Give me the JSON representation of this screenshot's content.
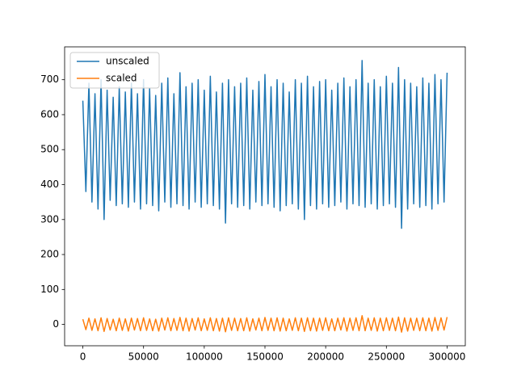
{
  "chart_data": {
    "type": "line",
    "x": [
      0,
      2500,
      5000,
      7500,
      10000,
      12500,
      15000,
      17500,
      20000,
      22500,
      25000,
      27500,
      30000,
      32500,
      35000,
      37500,
      40000,
      42500,
      45000,
      47500,
      50000,
      52500,
      55000,
      57500,
      60000,
      62500,
      65000,
      67500,
      70000,
      72500,
      75000,
      77500,
      80000,
      82500,
      85000,
      87500,
      90000,
      92500,
      95000,
      97500,
      100000,
      102500,
      105000,
      107500,
      110000,
      112500,
      115000,
      117500,
      120000,
      122500,
      125000,
      127500,
      130000,
      132500,
      135000,
      137500,
      140000,
      142500,
      145000,
      147500,
      150000,
      152500,
      155000,
      157500,
      160000,
      162500,
      165000,
      167500,
      170000,
      172500,
      175000,
      177500,
      180000,
      182500,
      185000,
      187500,
      190000,
      192500,
      195000,
      197500,
      200000,
      202500,
      205000,
      207500,
      210000,
      212500,
      215000,
      217500,
      220000,
      222500,
      225000,
      227500,
      230000,
      232500,
      235000,
      237500,
      240000,
      242500,
      245000,
      247500,
      250000,
      252500,
      255000,
      257500,
      260000,
      262500,
      265000,
      267500,
      270000,
      272500,
      275000,
      277500,
      280000,
      282500,
      285000,
      287500,
      290000,
      292500,
      295000,
      297500,
      300000
    ],
    "series": [
      {
        "name": "unscaled",
        "color": "#1f77b4",
        "values": [
          640,
          380,
          690,
          350,
          660,
          330,
          700,
          300,
          670,
          355,
          650,
          340,
          680,
          345,
          665,
          335,
          690,
          350,
          660,
          330,
          700,
          345,
          675,
          340,
          655,
          325,
          690,
          350,
          705,
          335,
          660,
          345,
          720,
          340,
          680,
          330,
          690,
          350,
          700,
          335,
          670,
          345,
          710,
          340,
          665,
          330,
          690,
          290,
          700,
          345,
          680,
          335,
          690,
          340,
          705,
          330,
          670,
          350,
          695,
          340,
          715,
          345,
          680,
          335,
          700,
          325,
          690,
          340,
          665,
          345,
          700,
          330,
          690,
          300,
          710,
          340,
          680,
          330,
          695,
          345,
          700,
          335,
          670,
          340,
          690,
          350,
          705,
          330,
          680,
          345,
          700,
          340,
          755,
          335,
          690,
          345,
          700,
          330,
          680,
          340,
          710,
          345,
          690,
          335,
          735,
          275,
          700,
          330,
          690,
          345,
          680,
          335,
          705,
          340,
          690,
          330,
          715,
          345,
          700,
          350,
          720
        ]
      },
      {
        "name": "scaled",
        "color": "#ff7f0e",
        "values": [
          15,
          -15,
          18,
          -17,
          16,
          -18,
          19,
          -20,
          17,
          -16,
          15,
          -18,
          18,
          -17,
          16,
          -19,
          18,
          -16,
          17,
          -18,
          19,
          -17,
          16,
          -18,
          15,
          -19,
          18,
          -16,
          19,
          -18,
          17,
          -17,
          20,
          -18,
          18,
          -19,
          17,
          -16,
          19,
          -18,
          16,
          -17,
          19,
          -18,
          17,
          -19,
          18,
          -21,
          19,
          -17,
          18,
          -18,
          17,
          -18,
          19,
          -19,
          16,
          -16,
          18,
          -18,
          20,
          -17,
          18,
          -18,
          19,
          -19,
          18,
          -18,
          16,
          -17,
          19,
          -18,
          18,
          -20,
          19,
          -18,
          18,
          -19,
          18,
          -17,
          19,
          -18,
          16,
          -18,
          18,
          -16,
          19,
          -19,
          18,
          -17,
          19,
          -18,
          25,
          -18,
          18,
          -17,
          19,
          -19,
          18,
          -18,
          19,
          -17,
          18,
          -18,
          21,
          -22,
          19,
          -19,
          18,
          -17,
          18,
          -18,
          19,
          -18,
          18,
          -19,
          20,
          -17,
          19,
          -16,
          21
        ]
      }
    ],
    "xlim": [
      -15000,
      315000
    ],
    "ylim": [
      -61,
      794
    ],
    "xticks": [
      0,
      50000,
      100000,
      150000,
      200000,
      250000,
      300000
    ],
    "yticks": [
      0,
      100,
      200,
      300,
      400,
      500,
      600,
      700
    ],
    "legend": "upper left"
  }
}
